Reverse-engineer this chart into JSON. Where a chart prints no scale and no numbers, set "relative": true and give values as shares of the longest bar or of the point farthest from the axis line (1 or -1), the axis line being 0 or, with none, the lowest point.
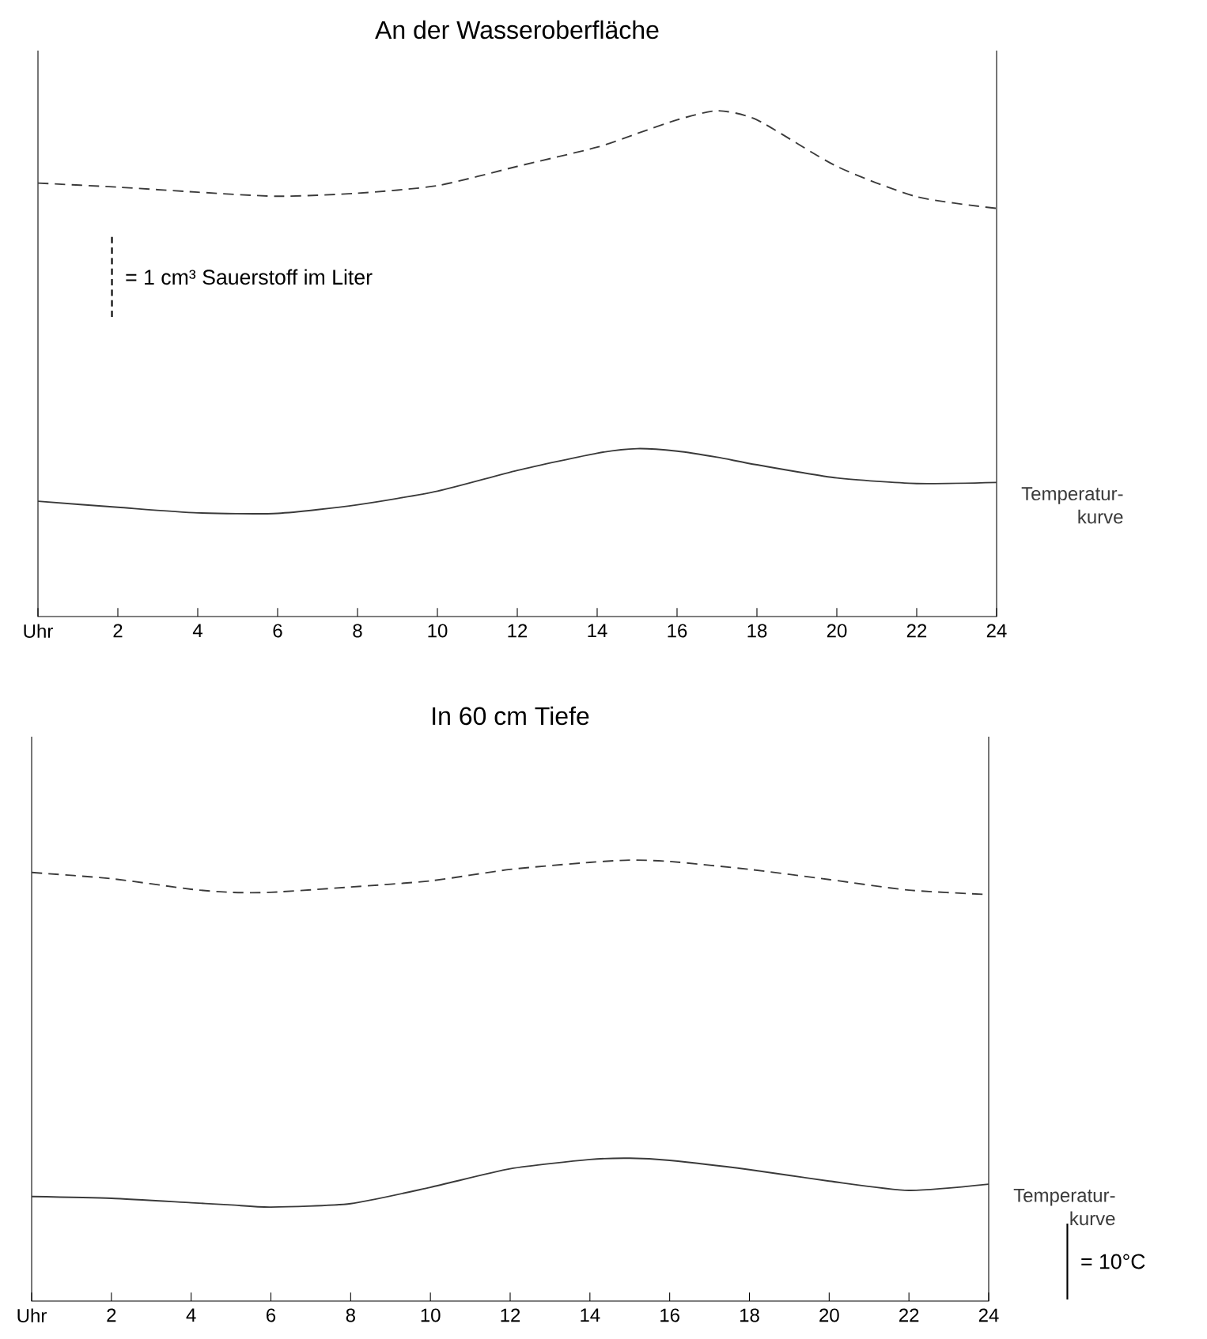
{
  "chart_data": [
    {
      "type": "line",
      "title": "An der Wasseroberfläche",
      "relative": true,
      "xlim": [
        0,
        24
      ],
      "xticks": [
        {
          "value": 0,
          "label": "Uhr"
        },
        2,
        4,
        6,
        8,
        10,
        12,
        14,
        16,
        18,
        20,
        22,
        24
      ],
      "x": [
        0,
        2,
        4,
        6,
        8,
        10,
        12,
        14,
        15,
        16,
        17,
        18,
        20,
        22,
        24
      ],
      "series": [
        {
          "color": "#3a3a3a",
          "line_style": "dashed",
          "values": [
            0.857,
            0.849,
            0.839,
            0.831,
            0.837,
            0.852,
            0.89,
            0.928,
            0.955,
            0.982,
            1.0,
            0.982,
            0.89,
            0.83,
            0.807
          ]
        },
        {
          "name": "Temperatur-kurve",
          "color": "#3a3a3a",
          "line_style": "solid",
          "values": [
            0.228,
            0.216,
            0.205,
            0.204,
            0.221,
            0.248,
            0.289,
            0.323,
            0.332,
            0.327,
            0.315,
            0.3,
            0.274,
            0.263,
            0.265
          ]
        }
      ],
      "annotations": [
        "= 1 cm³ Sauerstoff im Liter"
      ]
    },
    {
      "type": "line",
      "title": "In 60 cm Tiefe",
      "relative": true,
      "xlim": [
        0,
        24
      ],
      "xticks": [
        {
          "value": 0,
          "label": "Uhr"
        },
        2,
        4,
        6,
        8,
        10,
        12,
        14,
        16,
        18,
        20,
        22,
        24
      ],
      "x": [
        0,
        2,
        4,
        5,
        6,
        8,
        10,
        12,
        14,
        15,
        16,
        18,
        20,
        22,
        24
      ],
      "series": [
        {
          "color": "#3a3a3a",
          "line_style": "dashed",
          "values": [
            0.972,
            0.958,
            0.934,
            0.927,
            0.927,
            0.939,
            0.953,
            0.979,
            0.995,
            1.0,
            0.997,
            0.979,
            0.956,
            0.932,
            0.922
          ]
        },
        {
          "name": "Temperatur-kurve",
          "color": "#3a3a3a",
          "line_style": "solid",
          "values": [
            0.237,
            0.233,
            0.223,
            0.218,
            0.213,
            0.221,
            0.258,
            0.3,
            0.321,
            0.324,
            0.319,
            0.298,
            0.272,
            0.251,
            0.265
          ]
        }
      ],
      "annotations": [
        "= 10°C"
      ]
    }
  ]
}
